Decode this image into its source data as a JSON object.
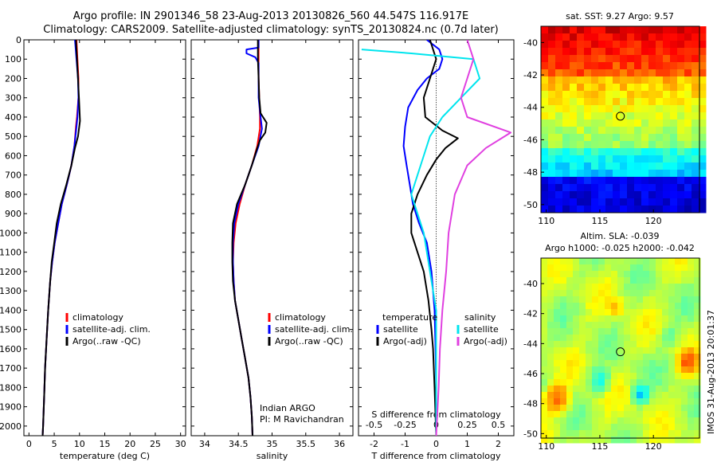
{
  "title_line1": "Argo profile: IN 2901346_58 23-Aug-2013 20130826_560 44.547S 116.917E",
  "title_line2": "Climatology: CARS2009. Satellite-adjusted climatology: synTS_20130824.nc (0.7d later)",
  "colors": {
    "climatology": "#ff0000",
    "satellite": "#0000ff",
    "argo": "#000000",
    "sal_satellite": "#00e5ee",
    "sal_argo": "#e040e0"
  },
  "chart_data": [
    {
      "type": "line",
      "panel": "temperature",
      "xlabel": "temperature (deg C)",
      "xlim": [
        -1,
        31
      ],
      "xticks": [
        0,
        5,
        10,
        15,
        20,
        25,
        30
      ],
      "ylim": [
        0,
        2050
      ],
      "yticks": [
        0,
        100,
        200,
        300,
        400,
        500,
        600,
        700,
        800,
        900,
        1000,
        1100,
        1200,
        1300,
        1400,
        1500,
        1600,
        1700,
        1800,
        1900,
        2000
      ],
      "legend": [
        "climatology",
        "satellite-adj. clim.",
        "Argo(..raw -QC)"
      ],
      "series": [
        {
          "name": "climatology",
          "color_key": "climatology",
          "points": [
            [
              9.4,
              0
            ],
            [
              9.6,
              100
            ],
            [
              9.8,
              200
            ],
            [
              9.8,
              300
            ],
            [
              9.5,
              400
            ],
            [
              9.3,
              450
            ],
            [
              9.0,
              550
            ],
            [
              8.4,
              650
            ],
            [
              7.5,
              750
            ],
            [
              6.5,
              850
            ],
            [
              5.8,
              950
            ],
            [
              5.1,
              1050
            ],
            [
              4.6,
              1150
            ],
            [
              4.2,
              1250
            ],
            [
              3.8,
              1400
            ],
            [
              3.5,
              1550
            ],
            [
              3.2,
              1700
            ],
            [
              3.0,
              1850
            ],
            [
              2.8,
              2000
            ],
            [
              2.7,
              2050
            ]
          ]
        },
        {
          "name": "satellite-adj. clim.",
          "color_key": "satellite",
          "points": [
            [
              9.1,
              0
            ],
            [
              9.4,
              100
            ],
            [
              9.7,
              200
            ],
            [
              9.8,
              300
            ],
            [
              9.6,
              400
            ],
            [
              9.4,
              450
            ],
            [
              9.0,
              550
            ],
            [
              8.4,
              650
            ],
            [
              7.5,
              750
            ],
            [
              6.5,
              850
            ],
            [
              5.8,
              950
            ],
            [
              5.1,
              1050
            ],
            [
              4.6,
              1150
            ],
            [
              4.2,
              1250
            ],
            [
              3.8,
              1400
            ],
            [
              3.5,
              1550
            ],
            [
              3.2,
              1700
            ],
            [
              3.0,
              1850
            ],
            [
              2.8,
              2000
            ],
            [
              2.7,
              2050
            ]
          ]
        },
        {
          "name": "Argo(..raw -QC)",
          "color_key": "argo",
          "points": [
            [
              9.3,
              0
            ],
            [
              9.5,
              100
            ],
            [
              9.7,
              200
            ],
            [
              9.9,
              300
            ],
            [
              10.1,
              420
            ],
            [
              9.7,
              500
            ],
            [
              9.1,
              560
            ],
            [
              8.4,
              650
            ],
            [
              7.4,
              750
            ],
            [
              6.3,
              850
            ],
            [
              5.5,
              950
            ],
            [
              5.0,
              1050
            ],
            [
              4.5,
              1150
            ],
            [
              4.2,
              1250
            ],
            [
              3.8,
              1400
            ],
            [
              3.5,
              1550
            ],
            [
              3.2,
              1700
            ],
            [
              3.0,
              1850
            ],
            [
              2.8,
              2000
            ],
            [
              2.7,
              2050
            ]
          ]
        }
      ]
    },
    {
      "type": "line",
      "panel": "salinity",
      "xlabel": "salinity",
      "xlim": [
        33.8,
        36.2
      ],
      "xticks": [
        34,
        34.5,
        35,
        35.5,
        36
      ],
      "xticklabels": [
        "34",
        "34.5",
        "35",
        "35.5",
        "36"
      ],
      "ylim": [
        0,
        2050
      ],
      "legend": [
        "climatology",
        "satellite-adj. clim.",
        "Argo(..raw -QC)"
      ],
      "annotation": [
        "Indian ARGO",
        "PI: M Ravichandran"
      ],
      "series": [
        {
          "name": "climatology",
          "color_key": "climatology",
          "points": [
            [
              34.8,
              0
            ],
            [
              34.8,
              100
            ],
            [
              34.8,
              200
            ],
            [
              34.81,
              300
            ],
            [
              34.82,
              400
            ],
            [
              34.82,
              460
            ],
            [
              34.78,
              550
            ],
            [
              34.7,
              650
            ],
            [
              34.6,
              750
            ],
            [
              34.52,
              850
            ],
            [
              34.46,
              950
            ],
            [
              34.43,
              1050
            ],
            [
              34.42,
              1150
            ],
            [
              34.43,
              1250
            ],
            [
              34.45,
              1350
            ],
            [
              34.5,
              1450
            ],
            [
              34.55,
              1550
            ],
            [
              34.6,
              1650
            ],
            [
              34.65,
              1750
            ],
            [
              34.68,
              1850
            ],
            [
              34.7,
              1950
            ],
            [
              34.71,
              2050
            ]
          ]
        },
        {
          "name": "satellite-adj. clim.",
          "color_key": "satellite",
          "points": [
            [
              34.8,
              0
            ],
            [
              34.8,
              40
            ],
            [
              34.62,
              50
            ],
            [
              34.62,
              70
            ],
            [
              34.75,
              90
            ],
            [
              34.8,
              120
            ],
            [
              34.8,
              200
            ],
            [
              34.8,
              300
            ],
            [
              34.83,
              400
            ],
            [
              34.85,
              460
            ],
            [
              34.8,
              550
            ],
            [
              34.7,
              650
            ],
            [
              34.6,
              750
            ],
            [
              34.5,
              850
            ],
            [
              34.44,
              950
            ],
            [
              34.42,
              1050
            ],
            [
              34.42,
              1150
            ],
            [
              34.43,
              1250
            ],
            [
              34.45,
              1350
            ],
            [
              34.5,
              1450
            ],
            [
              34.55,
              1550
            ],
            [
              34.6,
              1650
            ],
            [
              34.65,
              1750
            ],
            [
              34.68,
              1850
            ],
            [
              34.7,
              1950
            ],
            [
              34.71,
              2050
            ]
          ]
        },
        {
          "name": "Argo(..raw -QC)",
          "color_key": "argo",
          "points": [
            [
              34.79,
              0
            ],
            [
              34.79,
              100
            ],
            [
              34.8,
              200
            ],
            [
              34.81,
              300
            ],
            [
              34.83,
              380
            ],
            [
              34.92,
              430
            ],
            [
              34.9,
              480
            ],
            [
              34.82,
              520
            ],
            [
              34.78,
              560
            ],
            [
              34.7,
              650
            ],
            [
              34.6,
              750
            ],
            [
              34.48,
              850
            ],
            [
              34.42,
              950
            ],
            [
              34.41,
              1050
            ],
            [
              34.41,
              1150
            ],
            [
              34.42,
              1250
            ],
            [
              34.45,
              1350
            ],
            [
              34.5,
              1450
            ],
            [
              34.55,
              1550
            ],
            [
              34.6,
              1650
            ],
            [
              34.65,
              1750
            ],
            [
              34.68,
              1850
            ],
            [
              34.7,
              1950
            ],
            [
              34.71,
              2050
            ]
          ]
        }
      ]
    },
    {
      "type": "line",
      "panel": "difference",
      "xlabel": "T difference from climatology",
      "xlim": [
        -2.5,
        2.5
      ],
      "xticks": [
        -2,
        -1,
        0,
        1,
        2
      ],
      "x2label": "S difference from climatology",
      "x2ticks": [
        -0.5,
        -0.25,
        0,
        0.25,
        0.5
      ],
      "x2ticklabels": [
        "-0.5",
        "-0.25",
        "0",
        "0.25",
        "0.5"
      ],
      "ylim": [
        0,
        2050
      ],
      "legend_temperature_title": "temperature",
      "legend_salinity_title": "salinity",
      "legend_temperature": [
        "satellite",
        "Argo(-adj)"
      ],
      "legend_salinity": [
        "satellite",
        "Argo(-adj)"
      ],
      "series": [
        {
          "name": "satellite",
          "group": "temperature",
          "color_key": "satellite",
          "points": [
            [
              -0.3,
              0
            ],
            [
              0.1,
              50
            ],
            [
              0.2,
              100
            ],
            [
              0.1,
              150
            ],
            [
              -0.3,
              200
            ],
            [
              -0.6,
              260
            ],
            [
              -0.9,
              350
            ],
            [
              -1.0,
              450
            ],
            [
              -1.05,
              550
            ],
            [
              -0.95,
              650
            ],
            [
              -0.85,
              750
            ],
            [
              -0.75,
              850
            ],
            [
              -0.55,
              950
            ],
            [
              -0.3,
              1050
            ],
            [
              -0.15,
              1200
            ],
            [
              -0.05,
              1400
            ],
            [
              -0.02,
              1600
            ],
            [
              0,
              1800
            ],
            [
              0,
              2050
            ]
          ]
        },
        {
          "name": "Argo(-adj)",
          "group": "temperature",
          "color_key": "argo",
          "points": [
            [
              -0.2,
              0
            ],
            [
              0.0,
              100
            ],
            [
              -0.2,
              200
            ],
            [
              -0.4,
              300
            ],
            [
              -0.35,
              400
            ],
            [
              0.2,
              470
            ],
            [
              0.7,
              510
            ],
            [
              0.3,
              560
            ],
            [
              0.0,
              620
            ],
            [
              -0.3,
              700
            ],
            [
              -0.6,
              800
            ],
            [
              -0.8,
              900
            ],
            [
              -0.8,
              1000
            ],
            [
              -0.6,
              1100
            ],
            [
              -0.4,
              1200
            ],
            [
              -0.25,
              1350
            ],
            [
              -0.15,
              1500
            ],
            [
              -0.1,
              1600
            ],
            [
              -0.05,
              1800
            ],
            [
              0,
              2050
            ]
          ]
        },
        {
          "name": "satellite",
          "group": "salinity",
          "color_key": "sal_satellite",
          "points": [
            [
              -0.6,
              50
            ],
            [
              -0.2,
              70
            ],
            [
              0.3,
              100
            ],
            [
              0.35,
              200
            ],
            [
              0.2,
              300
            ],
            [
              0.05,
              400
            ],
            [
              -0.05,
              500
            ],
            [
              -0.1,
              600
            ],
            [
              -0.15,
              700
            ],
            [
              -0.2,
              800
            ],
            [
              -0.15,
              900
            ],
            [
              -0.1,
              1000
            ],
            [
              -0.05,
              1200
            ],
            [
              0,
              1400
            ],
            [
              0,
              1600
            ],
            [
              0,
              1800
            ],
            [
              0,
              2050
            ]
          ]
        },
        {
          "name": "Argo(-adj)",
          "group": "salinity",
          "color_key": "sal_argo",
          "points": [
            [
              0.25,
              0
            ],
            [
              0.3,
              100
            ],
            [
              0.25,
              200
            ],
            [
              0.2,
              300
            ],
            [
              0.25,
              400
            ],
            [
              0.6,
              480
            ],
            [
              0.4,
              560
            ],
            [
              0.25,
              650
            ],
            [
              0.15,
              800
            ],
            [
              0.1,
              1000
            ],
            [
              0.08,
              1200
            ],
            [
              0.05,
              1400
            ],
            [
              0.03,
              1600
            ],
            [
              0.02,
              1800
            ],
            [
              0,
              2050
            ]
          ]
        }
      ]
    },
    {
      "type": "heatmap",
      "panel": "sst_map",
      "title": "sat. SST: 9.27 Argo: 9.57",
      "xlim": [
        109.5,
        124.3
      ],
      "ylim": [
        -50.5,
        -39.0
      ],
      "xticks": [
        110,
        115,
        120
      ],
      "yticks": [
        -40,
        -42,
        -44,
        -46,
        -48,
        -50
      ],
      "marker": [
        116.917,
        -44.547
      ]
    },
    {
      "type": "heatmap",
      "panel": "sla_map",
      "title_line1": "Altim. SLA: -0.039",
      "title_line2": "Argo h1000: -0.025 h2000: -0.042",
      "xlim": [
        109.5,
        124.3
      ],
      "ylim": [
        -50.3,
        -38.3
      ],
      "xticks": [
        110,
        115,
        120
      ],
      "yticks": [
        -40,
        -42,
        -44,
        -46,
        -48,
        -50
      ],
      "marker": [
        116.917,
        -44.547
      ]
    }
  ],
  "side_label": "IMOS 31-Aug-2013 20:01:37"
}
